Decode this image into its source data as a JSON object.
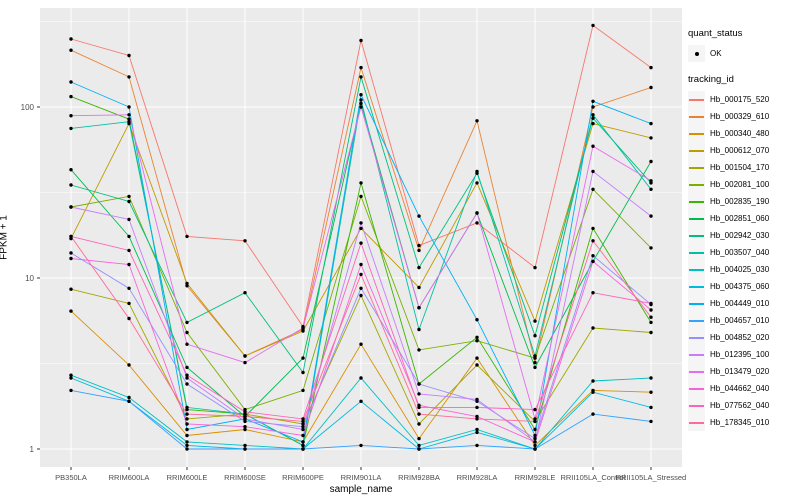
{
  "figure": {
    "panel_background": "#EBEBEB",
    "grid_color": "#FFFFFF",
    "axis_text_color": "#4D4D4D",
    "tick_color": "#333333",
    "point_color": "#000000"
  },
  "axes": {
    "y_title": "FPKM + 1",
    "x_title": "sample_name",
    "y_tick_labels": [
      "1",
      "10",
      "100"
    ],
    "y_tick_values": [
      1,
      10,
      100
    ],
    "y_minor_values": [
      3.1623,
      31.623,
      316.23
    ]
  },
  "legend": {
    "quant_status_title": "quant_status",
    "quant_status_items": [
      {
        "label": "OK",
        "symbol": "point"
      }
    ],
    "tracking_title": "tracking_id"
  },
  "chart_data": {
    "type": "line",
    "title": "",
    "xlabel": "sample_name",
    "ylabel": "FPKM + 1",
    "y_scale": "log10",
    "ylim": [
      1,
      370
    ],
    "grid": true,
    "legend_position": "right",
    "x_categories": [
      "PB350LA",
      "RRIM600LA",
      "RRIM600LE",
      "RRIM600SE",
      "RRIM600PE",
      "RRIM901LA",
      "RRIM928BA",
      "RRIM928LA",
      "RRIM928LE",
      "RRII105LA_Control",
      "RRII105LA_Stressed"
    ],
    "series": [
      {
        "name": "Hb_000175_520",
        "color": "#F8766D",
        "values": [
          250,
          200,
          17.5,
          16.5,
          5.2,
          245,
          15.5,
          21,
          11.5,
          300,
          170
        ]
      },
      {
        "name": "Hb_000329_610",
        "color": "#EA8331",
        "values": [
          215,
          150,
          9.0,
          3.5,
          5.0,
          170,
          14.5,
          83,
          3.2,
          100,
          130
        ]
      },
      {
        "name": "Hb_000340_480",
        "color": "#D89000",
        "values": [
          6.4,
          3.1,
          1.2,
          1.3,
          1.1,
          4.1,
          1.15,
          3.4,
          1.05,
          2.2,
          2.15
        ]
      },
      {
        "name": "Hb_000612_070",
        "color": "#C09B00",
        "values": [
          17,
          80,
          9.3,
          3.5,
          4.9,
          19.5,
          8.8,
          36,
          5.6,
          80,
          66
        ]
      },
      {
        "name": "Hb_001504_170",
        "color": "#A3A500",
        "values": [
          8.6,
          7.1,
          1.5,
          1.6,
          1.4,
          7.9,
          1.4,
          3.1,
          1.45,
          5.1,
          4.8
        ]
      },
      {
        "name": "Hb_002081_100",
        "color": "#7CAE00",
        "values": [
          26,
          30,
          4.8,
          1.7,
          2.2,
          30,
          3.8,
          4.3,
          3.4,
          33,
          15
        ]
      },
      {
        "name": "Hb_002835_190",
        "color": "#39B600",
        "values": [
          115,
          85,
          1.7,
          1.6,
          1.05,
          36,
          2.4,
          4.5,
          1.3,
          19.5,
          5.5
        ]
      },
      {
        "name": "Hb_002851_060",
        "color": "#00BB4E",
        "values": [
          43,
          17.5,
          3.0,
          1.55,
          3.4,
          105,
          6.7,
          24,
          3.0,
          12.5,
          48
        ]
      },
      {
        "name": "Hb_002942_030",
        "color": "#00BF7D",
        "values": [
          35,
          28,
          5.5,
          8.2,
          2.8,
          150,
          11.5,
          41,
          4.6,
          86,
          36
        ]
      },
      {
        "name": "Hb_003507_040",
        "color": "#00C1A3",
        "values": [
          75,
          82,
          1.75,
          1.6,
          1.05,
          110,
          5.0,
          42,
          3.5,
          90,
          33
        ]
      },
      {
        "name": "Hb_004025_030",
        "color": "#00BFC4",
        "values": [
          2.7,
          2.0,
          1.1,
          1.05,
          1.0,
          2.6,
          1.05,
          1.3,
          1.0,
          2.5,
          2.6
        ]
      },
      {
        "name": "Hb_004375_060",
        "color": "#00BAE0",
        "values": [
          2.6,
          1.9,
          1.05,
          1.0,
          1.0,
          1.9,
          1.0,
          1.25,
          1.0,
          2.15,
          1.75
        ]
      },
      {
        "name": "Hb_004449_010",
        "color": "#00B0F6",
        "values": [
          140,
          100,
          1.3,
          1.5,
          1.1,
          118,
          23,
          5.7,
          1.2,
          108,
          80
        ]
      },
      {
        "name": "Hb_004657_010",
        "color": "#35A2FF",
        "values": [
          2.2,
          1.9,
          1.0,
          1.0,
          1.0,
          1.05,
          1.0,
          1.05,
          1.0,
          1.6,
          1.45
        ]
      },
      {
        "name": "Hb_004852_020",
        "color": "#9590FF",
        "values": [
          14,
          8.7,
          2.4,
          1.45,
          1.35,
          8.7,
          2.4,
          1.9,
          1.15,
          13.5,
          7.0
        ]
      },
      {
        "name": "Hb_012395_100",
        "color": "#C77CFF",
        "values": [
          26,
          22,
          2.6,
          1.5,
          1.3,
          21,
          2.1,
          1.95,
          1.1,
          42,
          23
        ]
      },
      {
        "name": "Hb_013479_020",
        "color": "#E76BF3",
        "values": [
          89,
          90,
          4.1,
          3.2,
          5.1,
          100,
          6.7,
          24,
          1.5,
          59,
          37
        ]
      },
      {
        "name": "Hb_044662_040",
        "color": "#FA62DB",
        "values": [
          13,
          12,
          1.4,
          1.35,
          1.2,
          12,
          1.8,
          1.55,
          1.1,
          12.5,
          6.5
        ]
      },
      {
        "name": "Hb_077562_040",
        "color": "#FF62BC",
        "values": [
          17.5,
          14.5,
          2.7,
          1.65,
          1.5,
          16,
          1.75,
          1.75,
          1.7,
          8.2,
          7.1
        ]
      },
      {
        "name": "Hb_178345_010",
        "color": "#FF6A98",
        "values": [
          17.5,
          5.8,
          1.6,
          1.55,
          1.45,
          10.5,
          1.6,
          1.5,
          1.45,
          16.5,
          5.9
        ]
      }
    ]
  }
}
